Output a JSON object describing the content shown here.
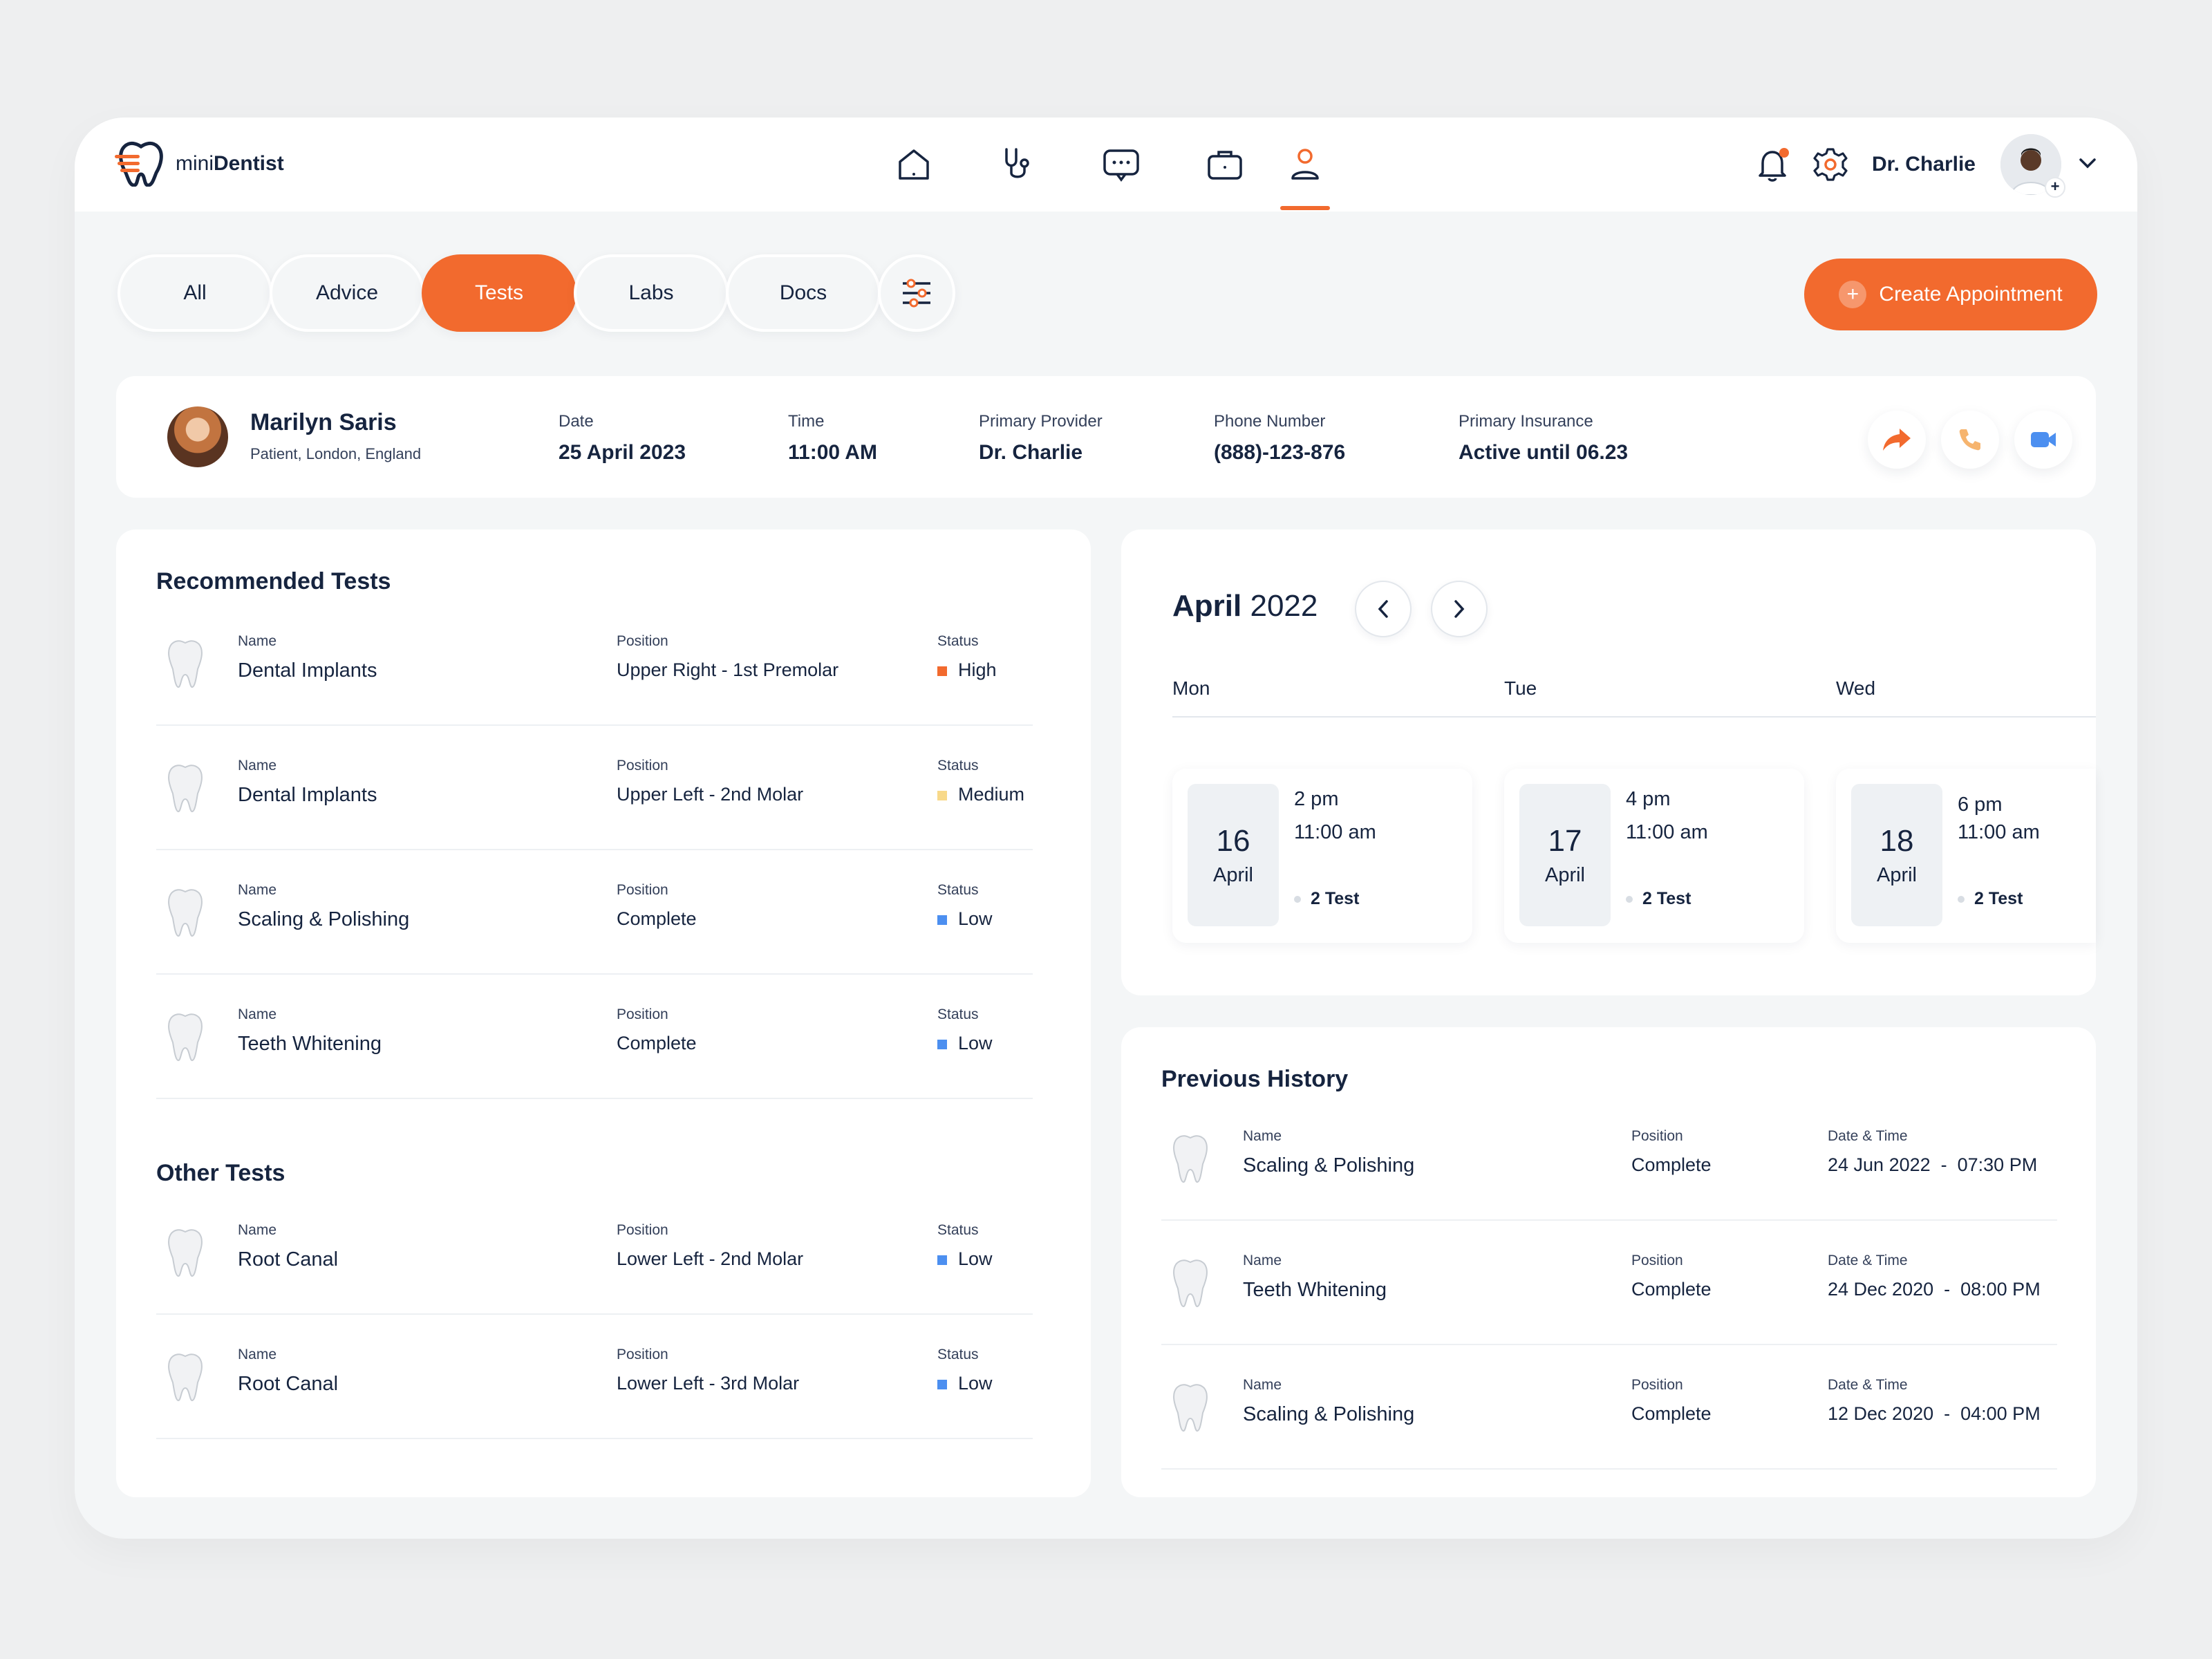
{
  "app": {
    "logo_prefix": "mini",
    "logo_bold": "Dentist",
    "user_name": "Dr. Charlie",
    "accent": "#f26a2e"
  },
  "nav_icons": [
    "home-icon",
    "stethoscope-icon",
    "chat-icon",
    "briefcase-icon",
    "user-icon"
  ],
  "tabs": [
    "All",
    "Advice",
    "Tests",
    "Labs",
    "Docs"
  ],
  "active_tab": "Tests",
  "create_button": "Create Appointment",
  "patient": {
    "name": "Marilyn Saris",
    "subtitle": "Patient, London, England",
    "fields": [
      {
        "label": "Date",
        "value": "25 April 2023"
      },
      {
        "label": "Time",
        "value": "11:00 AM"
      },
      {
        "label": "Primary Provider",
        "value": "Dr. Charlie"
      },
      {
        "label": "Phone Number",
        "value": "(888)-123-876"
      },
      {
        "label": "Primary Insurance",
        "value": "Active until 06.23"
      }
    ]
  },
  "recommended": {
    "title": "Recommended Tests",
    "name_label": "Name",
    "position_label": "Position",
    "status_label": "Status",
    "rows": [
      {
        "name": "Dental Implants",
        "position": "Upper Right - 1st Premolar",
        "status": "High",
        "color": "#f26a2e"
      },
      {
        "name": "Dental Implants",
        "position": "Upper Left - 2nd Molar",
        "status": "Medium",
        "color": "#f8d98a"
      },
      {
        "name": "Scaling & Polishing",
        "position": "Complete",
        "status": "Low",
        "color": "#4c8ff0"
      },
      {
        "name": "Teeth Whitening",
        "position": "Complete",
        "status": "Low",
        "color": "#4c8ff0"
      }
    ]
  },
  "other": {
    "title": "Other Tests",
    "rows": [
      {
        "name": "Root Canal",
        "position": "Lower Left - 2nd Molar",
        "status": "Low",
        "color": "#4c8ff0"
      },
      {
        "name": "Root Canal",
        "position": "Lower Left - 3rd Molar",
        "status": "Low",
        "color": "#4c8ff0"
      }
    ]
  },
  "calendar": {
    "month": "April",
    "year": "2022",
    "days": [
      "Mon",
      "Tue",
      "Wed"
    ],
    "slots": [
      {
        "day": "16",
        "month": "April",
        "time1": "2 pm",
        "time2": "11:00 am",
        "tests": "2 Test"
      },
      {
        "day": "17",
        "month": "April",
        "time1": "4 pm",
        "time2": "11:00 am",
        "tests": "2 Test"
      },
      {
        "day": "18",
        "month": "April",
        "time1": "6 pm",
        "time2": "11:00 am",
        "tests": "2 Test"
      }
    ]
  },
  "history": {
    "title": "Previous History",
    "name_label": "Name",
    "position_label": "Position",
    "datetime_label": "Date & Time",
    "rows": [
      {
        "name": "Scaling & Polishing",
        "position": "Complete",
        "datetime": "24 Jun 2022  -  07:30 PM"
      },
      {
        "name": "Teeth Whitening",
        "position": "Complete",
        "datetime": "24 Dec 2020  -  08:00 PM"
      },
      {
        "name": "Scaling & Polishing",
        "position": "Complete",
        "datetime": "12 Dec 2020  -  04:00 PM"
      }
    ]
  }
}
